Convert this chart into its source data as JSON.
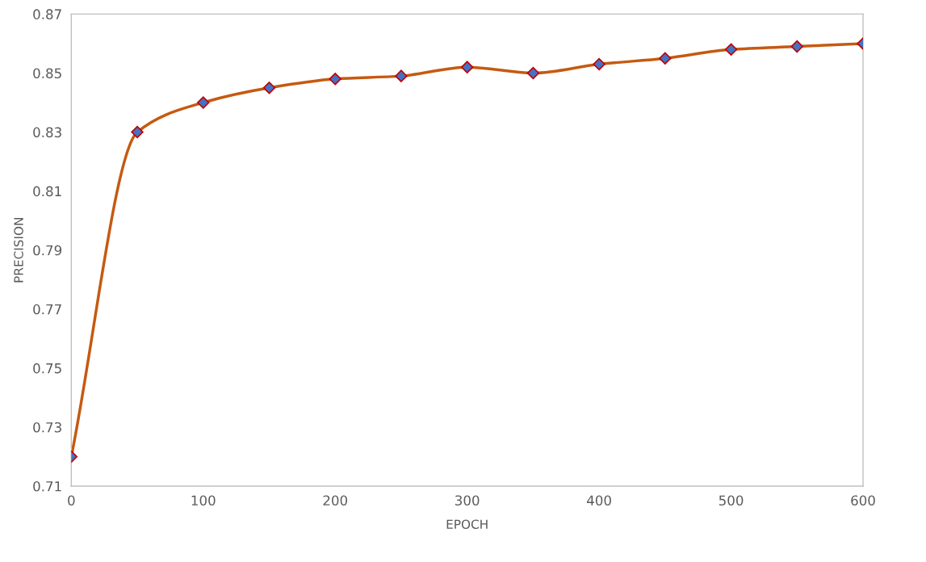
{
  "chart_data": {
    "type": "line",
    "xlabel": "EPOCH",
    "ylabel": "PRECISION",
    "x": [
      0,
      50,
      100,
      150,
      200,
      250,
      300,
      350,
      400,
      450,
      500,
      550,
      600
    ],
    "series": [
      {
        "color": "#c55a11",
        "values": [
          0.72,
          0.83,
          0.84,
          0.845,
          0.848,
          0.849,
          0.852,
          0.85,
          0.853,
          0.855,
          0.858,
          0.859,
          0.86
        ]
      }
    ],
    "xlim": [
      0,
      600
    ],
    "xticks": [
      0,
      100,
      200,
      300,
      400,
      500,
      600
    ],
    "ylim": [
      0.71,
      0.87
    ],
    "yticks": [
      0.71,
      0.73,
      0.75,
      0.77,
      0.79,
      0.81,
      0.83,
      0.85,
      0.87
    ],
    "marker": "diamond",
    "line_style": "solid",
    "grid": false
  }
}
